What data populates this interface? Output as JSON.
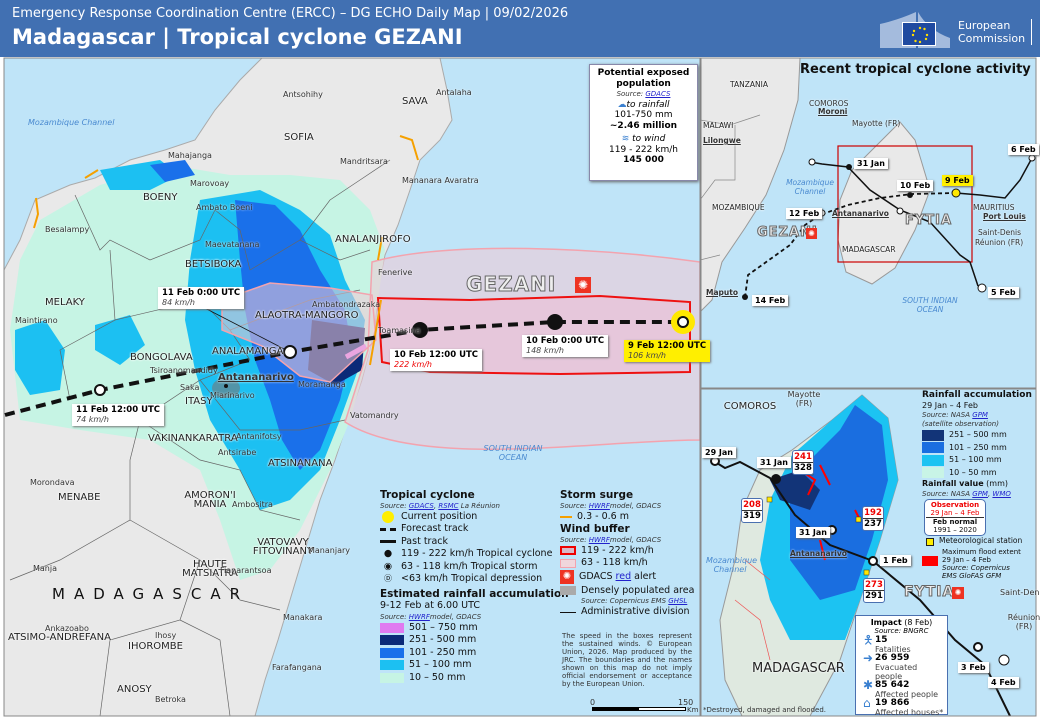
{
  "header": {
    "subtitle": "Emergency Response Coordination Centre (ERCC) – DG ECHO Daily Map | 09/02/2026",
    "title": "Madagascar | Tropical cyclone GEZANI",
    "logo_text_1": "European",
    "logo_text_2": "Commission"
  },
  "main_map": {
    "storm_name": "GEZANI",
    "country": "MADAGASCAR",
    "sea_mozambique": "Mozambique Channel",
    "sea_indian": "SOUTH INDIAN OCEAN",
    "places": [
      "Antsohihy",
      "SAVA",
      "Antalaha",
      "SOFIA",
      "Mahajanga",
      "Mandritsara",
      "Mananara Avaratra",
      "Marovoay",
      "BOENY",
      "Ambato Boeni",
      "Besalampy",
      "Maevatanana",
      "ANALANJIROFO",
      "BETSIBOKA",
      "Fenerive",
      "MELAKY",
      "Maintirano",
      "Ambatondrazaka",
      "ALAOTRA-MANGORO",
      "Toamasina",
      "ANALAMANGA",
      "BONGOLAVA",
      "Tsiroanomandidy",
      "Antananarivo",
      "Moramanga",
      "Saka",
      "ITASY",
      "Miarinarivo",
      "Vatomandry",
      "VAKINANKARATRA",
      "Antanifotsy",
      "Antsirabe",
      "ATSINANANA",
      "Morondava",
      "MENABE",
      "AMORON'I MANIA",
      "Ambositra",
      "VATOVAVY FITOVINANY",
      "Mananjary",
      "Manja",
      "HAUTE MATSIATRA",
      "Fianarantsoa",
      "Manakara",
      "Ankazoabo",
      "ATSIMO-ANDREFANA",
      "Ihosy",
      "IHOROMBE",
      "Farafangana",
      "ANOSY",
      "Betroka"
    ],
    "track_points": [
      {
        "time": "11 Feb 0:00 UTC",
        "speed": "84 km/h"
      },
      {
        "time": "10 Feb 12:00 UTC",
        "speed": "222 km/h"
      },
      {
        "time": "10 Feb 0:00 UTC",
        "speed": "148 km/h"
      },
      {
        "time": "9 Feb 12:00 UTC",
        "speed": "106 km/h"
      },
      {
        "time": "11 Feb 12:00 UTC",
        "speed": "74 km/h"
      }
    ]
  },
  "exposure": {
    "title": "Potential exposed population",
    "source_prefix": "Source:",
    "source_link": "GDACS",
    "rain_label": "to rainfall",
    "rain_range": "101-750 mm",
    "rain_pop": "~2.46 million",
    "wind_label": "to wind",
    "wind_range": "119 - 222 km/h",
    "wind_pop": "145 000"
  },
  "legend": {
    "tc_title": "Tropical cyclone",
    "tc_source_prefix": "Source:",
    "tc_source_1": "GDACS",
    "tc_source_2": "RSMC",
    "tc_source_suffix": "La Réunion",
    "tc_items": [
      "Current position",
      "Forecast track",
      "Past track",
      "119 - 222 km/h Tropical cyclone",
      "63 - 118 km/h Tropical storm",
      "<63 km/h Tropical depression"
    ],
    "rain_title": "Estimated rainfall accumulation",
    "rain_period": "9-12 Feb at 6.00 UTC",
    "rain_source_prefix": "Source:",
    "rain_source_link": "HWRF",
    "rain_source_suffix": "model, GDACS",
    "rain_classes": [
      {
        "label": "501 – 750 mm",
        "color": "#e07af0"
      },
      {
        "label": "251 - 500 mm",
        "color": "#0b2a78"
      },
      {
        "label": "101 - 250 mm",
        "color": "#1a70ea"
      },
      {
        "label": "51 – 100 mm",
        "color": "#1cc0f2"
      },
      {
        "label": "10 – 50 mm",
        "color": "#c6f4e4"
      }
    ],
    "surge_title": "Storm surge",
    "surge_source_prefix": "Source:",
    "surge_source_link": "HWRF",
    "surge_source_suffix": "model, GDACS",
    "surge_item": "0.3 - 0.6 m",
    "wind_title": "Wind buffer",
    "wind_source_prefix": "Source:",
    "wind_source_link": "HWRF",
    "wind_source_suffix": "model, GDACS",
    "wind_items": [
      "119 - 222 km/h",
      "63 - 118 km/h"
    ],
    "alert_pre": "GDACS",
    "alert_link": "red",
    "alert_post": "alert",
    "dense_label": "Densely populated area",
    "dense_source_prefix": "Source: Copernicus EMS",
    "dense_source_link": "GHSL",
    "admin_label": "Administrative division",
    "note": "The speed in the boxes represent the sustained winds. © European Union, 2026. Map produced by the JRC. The boundaries and the names shown on this map do not imply official endorsement or acceptance by the European Union.",
    "scale_0": "0",
    "scale_150": "150",
    "scale_unit": "Km"
  },
  "inset_recent": {
    "title": "Recent tropical cyclone activity",
    "places": [
      "TANZANIA",
      "COMOROS",
      "Moroni",
      "Mayotte (FR)",
      "MALAWI",
      "Lilongwe",
      "Mozambique Channel",
      "MOZAMBIQUE",
      "MADAGASCAR",
      "MAURITIUS",
      "Port Louis",
      "Saint-Denis",
      "Réunion (FR)",
      "Maputo",
      "SOUTH INDIAN OCEAN",
      "Antananarivo"
    ],
    "storms": [
      "FYTIA",
      "GEZANI"
    ],
    "dates": [
      "31 Jan",
      "10 Feb",
      "9 Feb",
      "6 Feb",
      "12 Feb",
      "14 Feb",
      "5 Feb"
    ]
  },
  "inset_rain": {
    "places": [
      "Mayotte (FR)",
      "COMOROS",
      "MADAGASCAR",
      "Saint-Denis",
      "Réunion (FR)",
      "Antananarivo",
      "Mozambique Channel"
    ],
    "storm": "FYTIA",
    "dates": [
      "29 Jan",
      "31 Jan",
      "31 Jan",
      "1 Feb",
      "3 Feb",
      "4 Feb"
    ],
    "values": [
      {
        "obs": "241",
        "normal": "328"
      },
      {
        "obs": "208",
        "normal": "319"
      },
      {
        "obs": "192",
        "normal": "237"
      },
      {
        "obs": "273",
        "normal": "291"
      }
    ],
    "legend_title": "Rainfall accumulation",
    "legend_period": "29 Jan – 4 Feb",
    "legend_source_prefix": "Source: NASA",
    "legend_source_link": "GPM",
    "legend_source_note": "(satellite observation)",
    "classes": [
      {
        "label": "251 – 500 mm",
        "color": "#123478"
      },
      {
        "label": "101 – 250 mm",
        "color": "#1a6ee0"
      },
      {
        "label": "51 – 100 mm",
        "color": "#1cc3f2"
      },
      {
        "label": "10 – 50 mm",
        "color": "#c8f4e6"
      }
    ],
    "value_title": "Rainfall value",
    "value_unit": "(mm)",
    "value_source_prefix": "Source: NASA",
    "value_source_1": "GPM",
    "value_source_2": "WMO",
    "obs_label": "Observation",
    "obs_period": "29 Jan – 4 Feb",
    "normal_label": "Feb normal",
    "normal_period": "1991 – 2020",
    "station_label": "Meteorological station",
    "flood_label": "Maximum flood extent",
    "flood_period": "29 Jan – 4 Feb",
    "flood_source_1": "Source: Copernicus",
    "flood_source_2": "EMS GloFAS GFM",
    "impact": {
      "title": "Impact",
      "date": "(8 Feb)",
      "source": "Source: BNGRC",
      "items": [
        {
          "value": "15",
          "label": "Fatalities"
        },
        {
          "value": "26 959",
          "label": "Evacuated people"
        },
        {
          "value": "85 642",
          "label": "Affected people"
        },
        {
          "value": "19 866",
          "label": "Affected houses*"
        }
      ]
    },
    "footnote": "*Destroyed, damaged and flooded."
  }
}
